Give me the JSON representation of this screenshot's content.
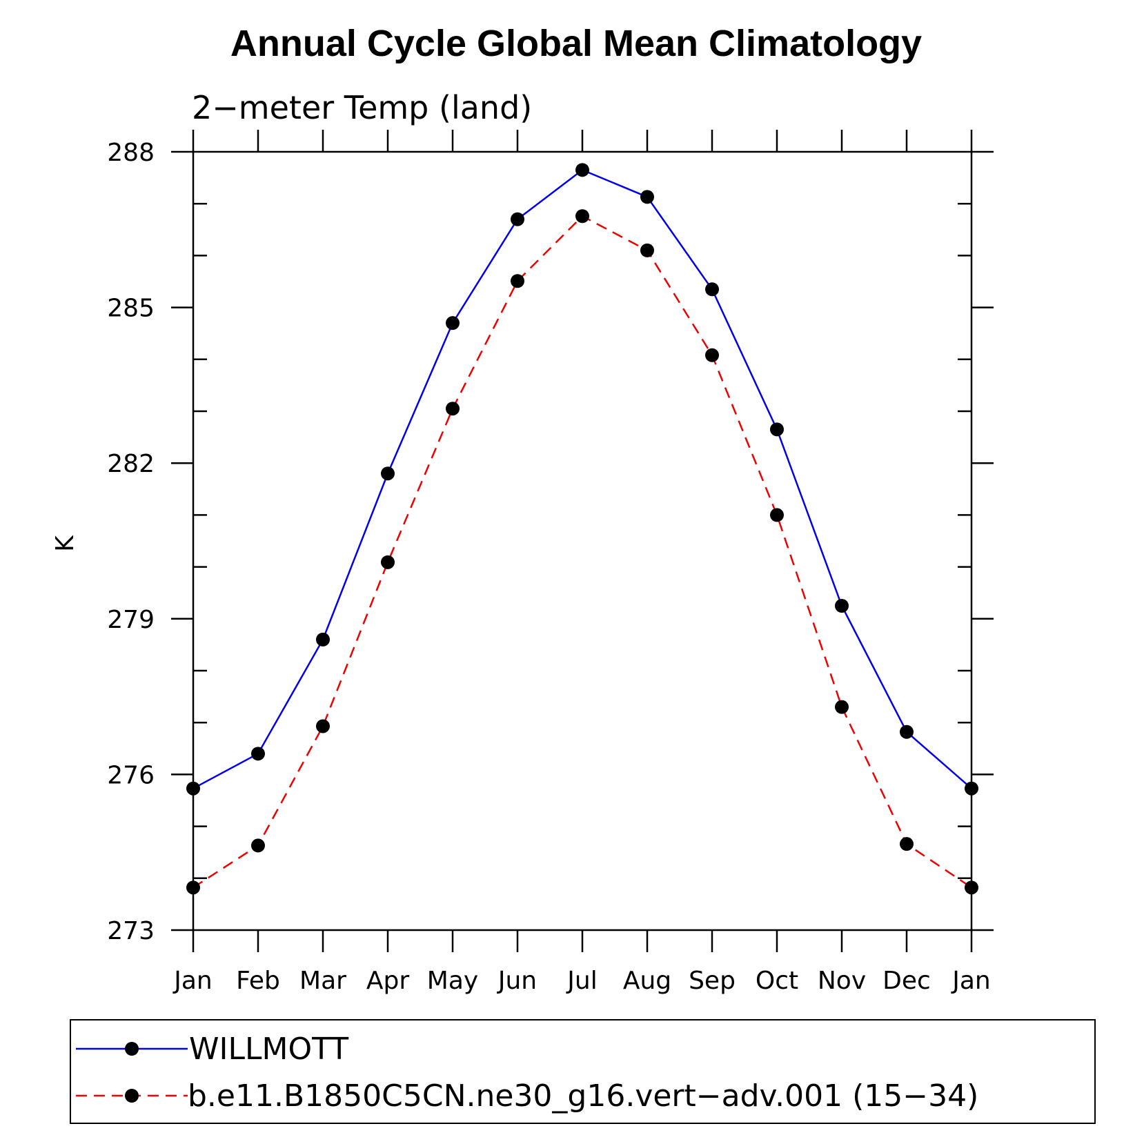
{
  "chart_data": {
    "type": "line",
    "title": "Annual Cycle Global Mean Climatology",
    "subtitle": "2−meter Temp (land)",
    "ylabel": "K",
    "xlabel": "",
    "categories": [
      "Jan",
      "Feb",
      "Mar",
      "Apr",
      "May",
      "Jun",
      "Jul",
      "Aug",
      "Sep",
      "Oct",
      "Nov",
      "Dec",
      "Jan"
    ],
    "ylim": [
      273,
      288
    ],
    "yticks": [
      273,
      276,
      279,
      282,
      285,
      288
    ],
    "yticks_text": [
      "273",
      "276",
      "279",
      "282",
      "285",
      "288"
    ],
    "series": [
      {
        "name": "WILLMOTT",
        "color": "#0000ee",
        "dash": "solid",
        "values": [
          275.73,
          276.4,
          278.6,
          281.8,
          284.7,
          286.7,
          287.65,
          287.13,
          285.35,
          282.65,
          279.25,
          276.82,
          275.73
        ]
      },
      {
        "name": "b.e11.B1850C5CN.ne30_g16.vert−adv.001 (15−34)",
        "color": "#ee0000",
        "dash": "dashed",
        "values": [
          273.82,
          274.63,
          276.93,
          280.09,
          283.05,
          285.51,
          286.76,
          286.1,
          284.08,
          281.0,
          277.3,
          274.66,
          273.82
        ]
      }
    ],
    "legend_position": "bottom"
  }
}
